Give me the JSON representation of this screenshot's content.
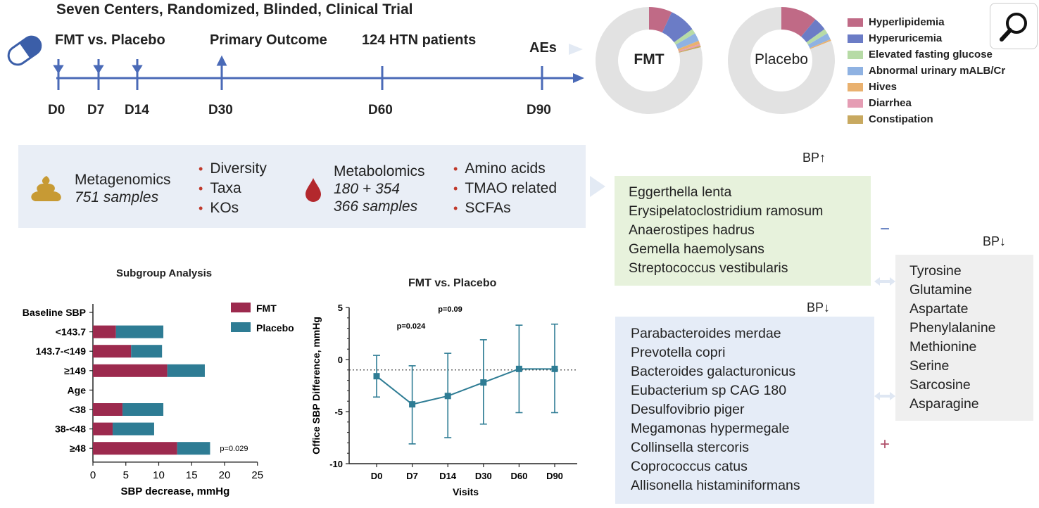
{
  "trial_title": "Seven Centers, Randomized,  Blinded, Clinical Trial",
  "timeline": {
    "labels": {
      "fmt_vs_placebo": "FMT vs. Placebo",
      "primary_outcome": "Primary Outcome",
      "patients": "124 HTN patients",
      "aes": "AEs"
    },
    "days": [
      "D0",
      "D7",
      "D14",
      "D30",
      "D60",
      "D90"
    ]
  },
  "donuts": [
    {
      "center_label": "FMT",
      "slices": [
        0.07,
        0.08,
        0.015,
        0.025,
        0.01,
        0.005,
        0.005
      ],
      "rest": 0.79
    },
    {
      "center_label": "Placebo",
      "slices": [
        0.11,
        0.04,
        0.015,
        0.02,
        0.005,
        0.0,
        0.0
      ],
      "rest": 0.81
    }
  ],
  "ae_legend": [
    {
      "label": "Hyperlipidemia",
      "color": "#c06a86"
    },
    {
      "label": "Hyperuricemia",
      "color": "#6b7cc6"
    },
    {
      "label": "Elevated fasting glucose",
      "color": "#b7dba6"
    },
    {
      "label": "Abnormal urinary mALB/Cr",
      "color": "#8fb2e2"
    },
    {
      "label": "Hives",
      "color": "#e9b16f"
    },
    {
      "label": "Diarrhea",
      "color": "#e59db4"
    },
    {
      "label": "Constipation",
      "color": "#c8a960"
    }
  ],
  "omics": {
    "metagenomics": {
      "title": "Metagenomics",
      "samples": "751 samples",
      "items": [
        "Diversity",
        "Taxa",
        "KOs"
      ]
    },
    "metabolomics": {
      "title": "Metabolomics",
      "samples_line1": "180 + 354",
      "samples_line2": "366 samples",
      "items": [
        "Amino acids",
        "TMAO related",
        "SCFAs"
      ]
    }
  },
  "bp_up_label": "BP↑",
  "bp_up_species": [
    "Eggerthella lenta",
    "Erysipelatoclostridium ramosum",
    "Anaerostipes hadrus",
    "Gemella haemolysans",
    "Streptococcus vestibularis"
  ],
  "bp_down_species_label": "BP↓",
  "bp_down_species": [
    "Parabacteroides merdae",
    "Prevotella copri",
    "Bacteroides galacturonicus",
    "Eubacterium sp CAG 180",
    "Desulfovibrio piger",
    "Megamonas hypermegale",
    "Collinsella stercoris",
    "Coprococcus catus",
    "Allisonella histaminiformans"
  ],
  "bp_down_metab_label": "BP↓",
  "bp_down_metabolites": [
    "Tyrosine",
    "Glutamine",
    "Aspartate",
    "Phenylalanine",
    "Methionine",
    "Serine",
    "Sarcosine",
    "Asparagine"
  ],
  "minus_sign": "−",
  "plus_sign": "+",
  "chart_data": [
    {
      "type": "bar",
      "title": "Subgroup Analysis",
      "xlabel": "SBP decrease, mmHg",
      "xlim": [
        0,
        25
      ],
      "xticks": [
        "0",
        "5",
        "10",
        "15",
        "20",
        "25"
      ],
      "categories": [
        "Baseline SBP",
        "<143.7",
        "143.7-<149",
        "≥149",
        "Age",
        "<38",
        "38-<48",
        "≥48"
      ],
      "series": [
        {
          "name": "FMT",
          "color": "#9c2a4e",
          "values": [
            null,
            3.5,
            5.8,
            11.3,
            null,
            4.5,
            3.0,
            12.8
          ]
        },
        {
          "name": "Placebo",
          "color": "#2e7c94",
          "values": [
            null,
            7.2,
            4.7,
            5.7,
            null,
            6.2,
            6.3,
            5.0
          ]
        }
      ],
      "stacked": true,
      "annotation": "p=0.029",
      "legend": [
        "FMT",
        "Placebo"
      ]
    },
    {
      "type": "line",
      "title": "FMT vs. Placebo",
      "xlabel": "Visits",
      "ylabel": "Office SBP Difference, mmHg",
      "categories": [
        "D0",
        "D7",
        "D14",
        "D30",
        "D60",
        "D90"
      ],
      "ylim": [
        -10,
        5
      ],
      "yticks": [
        "5",
        "0",
        "-5",
        "-10"
      ],
      "values": [
        -1.6,
        -4.3,
        -3.5,
        -2.2,
        -0.9,
        -0.9
      ],
      "err_high": [
        0.4,
        -0.6,
        0.6,
        1.9,
        3.3,
        3.4
      ],
      "err_low": [
        -3.6,
        -8.1,
        -7.5,
        -6.2,
        -5.1,
        -5.1
      ],
      "reference_line": -1.0,
      "annotations": [
        {
          "text": "p=0.024",
          "at": "D7"
        },
        {
          "text": "p=0.09",
          "at": "D14"
        }
      ],
      "color": "#2e7c94"
    }
  ]
}
